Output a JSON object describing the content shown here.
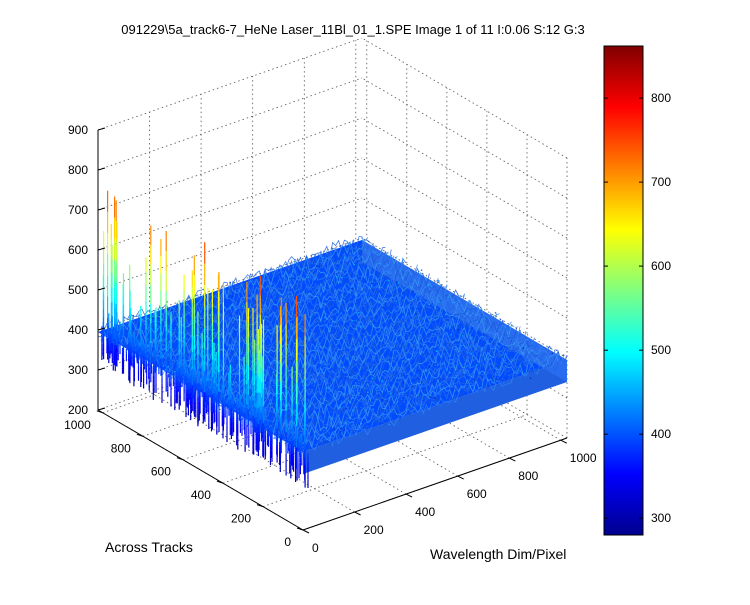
{
  "chart_data": {
    "type": "surface",
    "title": "091229\\5a_track6-7_HeNe Laser_11Bl_01_1.SPE  Image 1 of 11  I:0.06  S:12  G:3",
    "xlabel": "Wavelength Dim/Pixel",
    "ylabel": "Across Tracks",
    "zlabel": "",
    "x_ticks": [
      "0",
      "200",
      "400",
      "600",
      "800",
      "1000"
    ],
    "y_ticks": [
      "0",
      "200",
      "400",
      "600",
      "800",
      "1000"
    ],
    "z_ticks": [
      "200",
      "300",
      "400",
      "500",
      "600",
      "700",
      "800",
      "900"
    ],
    "xlim": [
      0,
      1024
    ],
    "ylim": [
      0,
      1024
    ],
    "zlim": [
      200,
      900
    ],
    "grid": true,
    "colormap": "jet",
    "colorbar_ticks": [
      "300",
      "400",
      "500",
      "600",
      "700",
      "800"
    ],
    "colorbar_range": [
      280,
      862
    ],
    "baseline_level": 395,
    "noise_amplitude": 25,
    "spike_edge": "x = 0",
    "spike_range": [
      300,
      780
    ]
  }
}
